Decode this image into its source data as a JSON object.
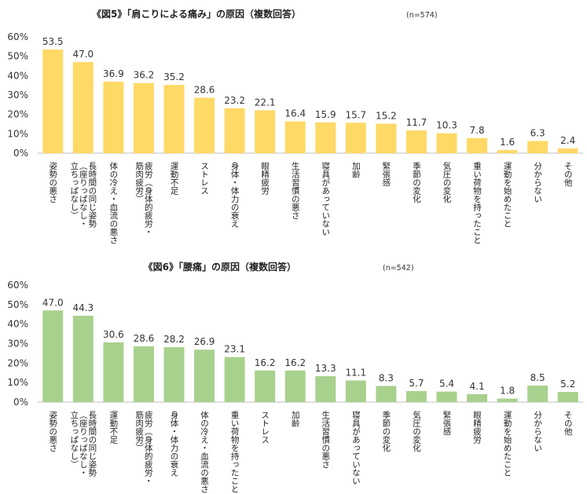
{
  "chart_data": [
    {
      "type": "bar",
      "title": "《図5》「肩こりによる痛み」の原因（複数回答）",
      "n_label": "(n=574)",
      "color": "#FFD966",
      "ylim": [
        0,
        60
      ],
      "yticks": [
        "0%",
        "10%",
        "20%",
        "30%",
        "40%",
        "50%",
        "60%"
      ],
      "categories": [
        [
          "姿勢の悪さ"
        ],
        [
          "長時間の同じ姿勢",
          "（座りっぱなし・",
          "立ちっぱなし）"
        ],
        [
          "体の冷え・血流の悪さ"
        ],
        [
          "疲労（身体的疲労・",
          "筋肉疲労）"
        ],
        [
          "運動不足"
        ],
        [
          "ストレス"
        ],
        [
          "身体・体力の衰え"
        ],
        [
          "眼精疲労"
        ],
        [
          "生活習慣の悪さ"
        ],
        [
          "寝具があっていない"
        ],
        [
          "加齢"
        ],
        [
          "緊張感"
        ],
        [
          "季節の変化"
        ],
        [
          "気圧の変化"
        ],
        [
          "重い荷物を持ったこと"
        ],
        [
          "運動を始めたこと"
        ],
        [
          "分からない"
        ],
        [
          "その他"
        ]
      ],
      "values": [
        53.5,
        47.0,
        36.9,
        36.2,
        35.2,
        28.6,
        23.2,
        22.1,
        16.4,
        15.9,
        15.7,
        15.2,
        11.7,
        10.3,
        7.8,
        1.6,
        6.3,
        2.4
      ],
      "value_labels": [
        "53.5",
        "47.0",
        "36.9",
        "36.2",
        "35.2",
        "28.6",
        "23.2",
        "22.1",
        "16.4",
        "15.9",
        "15.7",
        "15.2",
        "11.7",
        "10.3",
        "7.8",
        "1.6",
        "6.3",
        "2.4"
      ]
    },
    {
      "type": "bar",
      "title": "《図6》「腰痛」の原因（複数回答）",
      "n_label": "(n=542)",
      "color": "#A9D18E",
      "ylim": [
        0,
        60
      ],
      "yticks": [
        "0%",
        "10%",
        "20%",
        "30%",
        "40%",
        "50%",
        "60%"
      ],
      "categories": [
        [
          "姿勢の悪さ"
        ],
        [
          "長時間の同じ姿勢",
          "（座りっぱなし・",
          "立ちっぱなし）"
        ],
        [
          "運動不足"
        ],
        [
          "疲労（身体的疲労・",
          "筋肉疲労）"
        ],
        [
          "身体・体力の衰え"
        ],
        [
          "体の冷え・血流の悪さ"
        ],
        [
          "重い荷物を持ったこと"
        ],
        [
          "ストレス"
        ],
        [
          "加齢"
        ],
        [
          "生活習慣の悪さ"
        ],
        [
          "寝具があっていない"
        ],
        [
          "季節の変化"
        ],
        [
          "気圧の変化"
        ],
        [
          "緊張感"
        ],
        [
          "眼精疲労"
        ],
        [
          "運動を始めたこと"
        ],
        [
          "分からない"
        ],
        [
          "その他"
        ]
      ],
      "values": [
        47.0,
        44.3,
        30.6,
        28.6,
        28.2,
        26.9,
        23.1,
        16.2,
        16.2,
        13.3,
        11.1,
        8.3,
        5.7,
        5.4,
        4.1,
        1.8,
        8.5,
        5.2
      ],
      "value_labels": [
        "47.0",
        "44.3",
        "30.6",
        "28.6",
        "28.2",
        "26.9",
        "23.1",
        "16.2",
        "16.2",
        "13.3",
        "11.1",
        "8.3",
        "5.7",
        "5.4",
        "4.1",
        "1.8",
        "8.5",
        "5.2"
      ]
    }
  ]
}
